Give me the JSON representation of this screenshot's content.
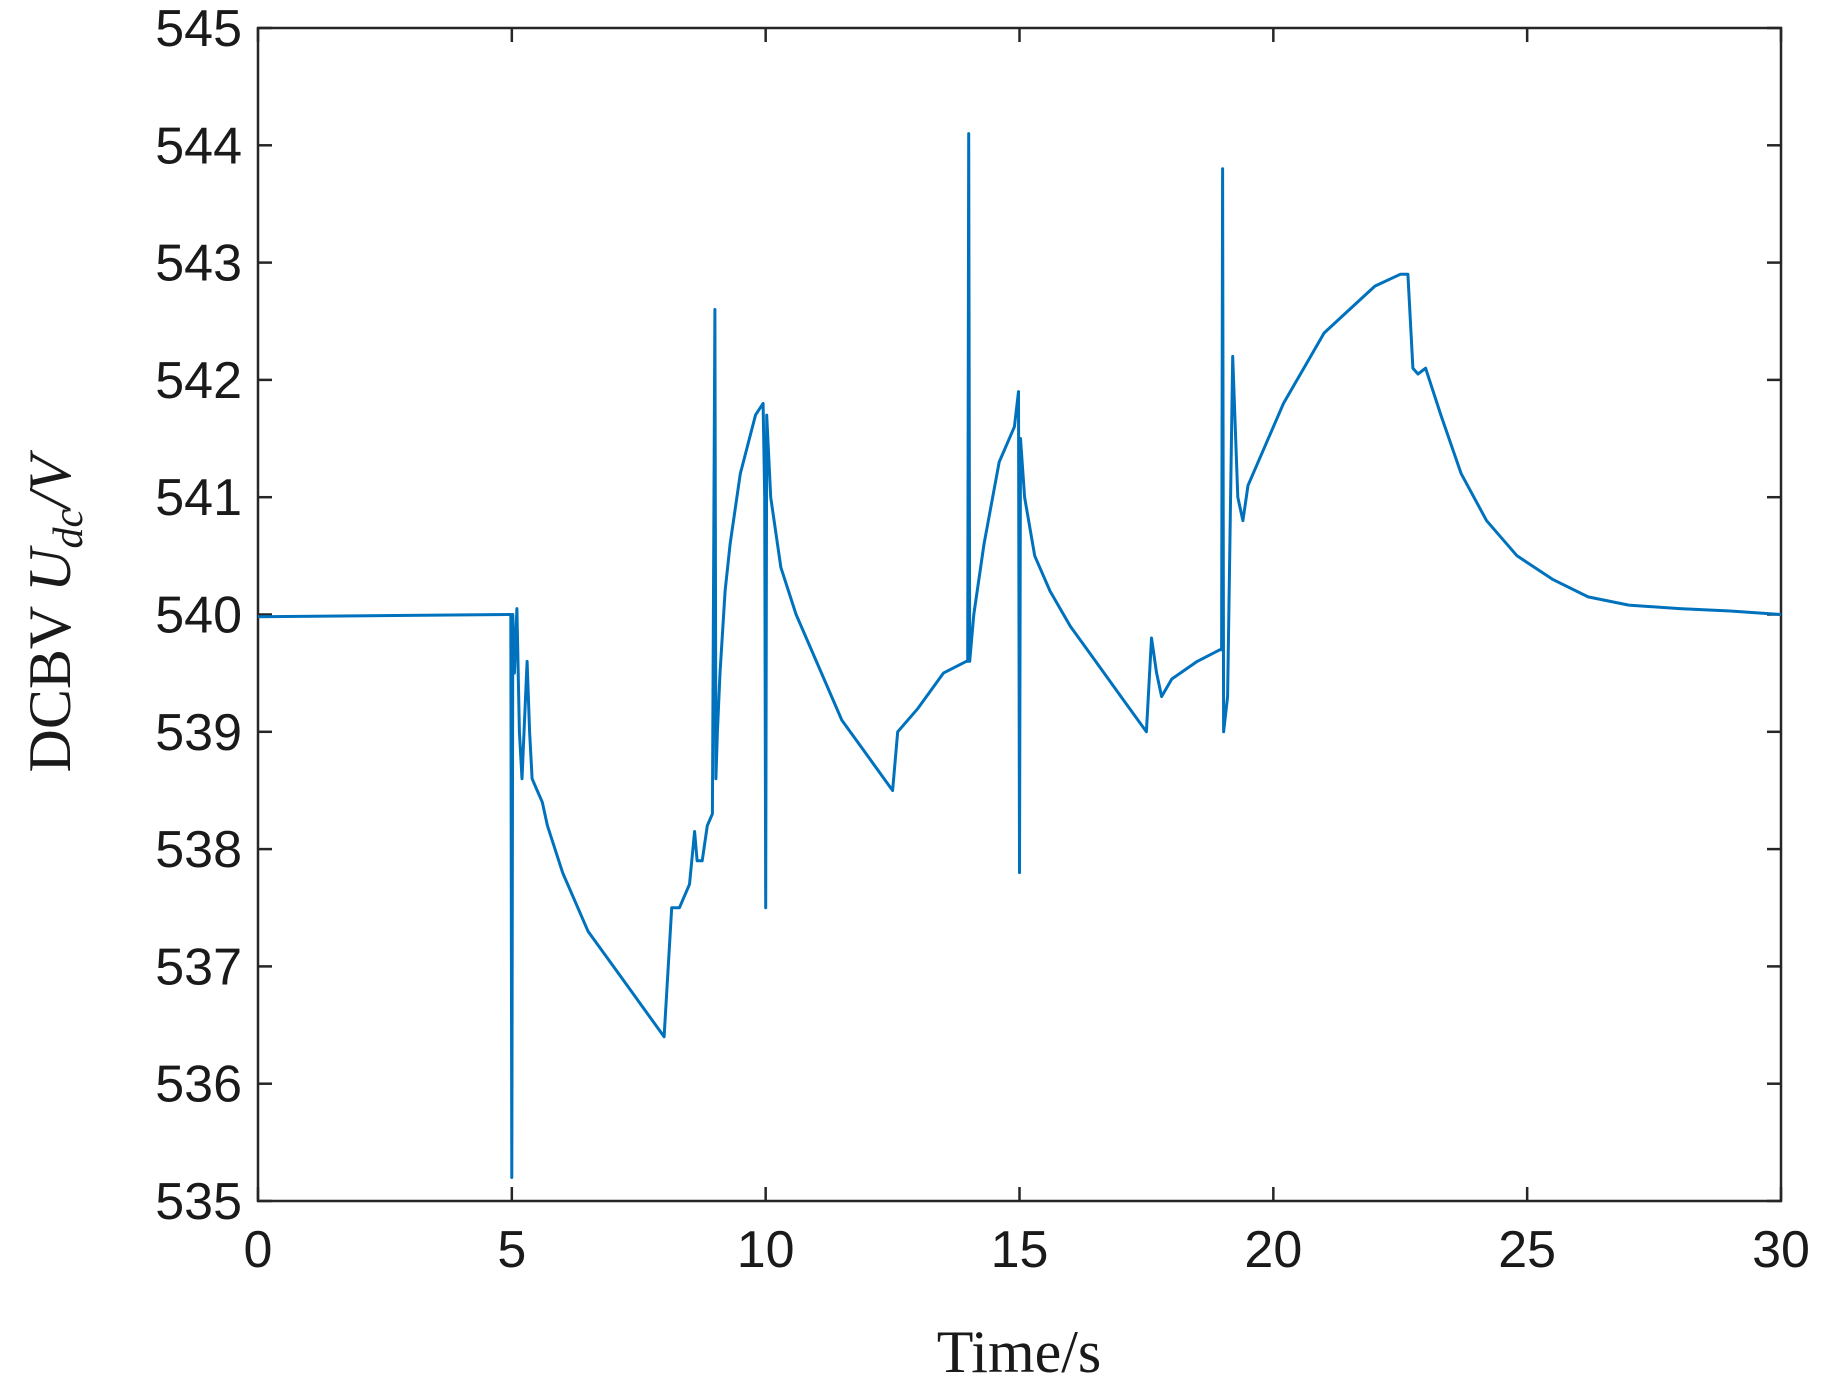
{
  "chart_data": {
    "type": "line",
    "xlabel": "Time/s",
    "ylabel_plain": "DCBV ",
    "ylabel_var": "U",
    "ylabel_sub": "dc",
    "ylabel_unit": "/V",
    "xlim": [
      0,
      30
    ],
    "ylim": [
      535,
      545
    ],
    "xticks": [
      0,
      5,
      10,
      15,
      20,
      25,
      30
    ],
    "yticks": [
      535,
      536,
      537,
      538,
      539,
      540,
      541,
      542,
      543,
      544,
      545
    ],
    "grid": false,
    "line_color": "#0072BD",
    "series": [
      {
        "x": [
          0,
          4.98,
          5.0,
          5.02,
          5.05,
          5.1,
          5.15,
          5.2,
          5.3,
          5.35,
          5.4,
          5.5,
          5.6,
          5.7,
          6.0,
          6.5,
          7.0,
          7.5,
          8.0,
          8.15,
          8.2,
          8.3,
          8.5,
          8.6,
          8.65,
          8.75,
          8.85,
          8.95,
          9.0,
          9.02,
          9.05,
          9.1,
          9.2,
          9.3,
          9.5,
          9.8,
          9.95,
          9.98,
          10.0,
          10.02,
          10.1,
          10.3,
          10.6,
          11.0,
          11.5,
          12.0,
          12.5,
          12.6,
          13.0,
          13.5,
          13.95,
          13.98,
          14.0,
          14.02,
          14.1,
          14.3,
          14.6,
          14.9,
          14.98,
          15.0,
          15.02,
          15.1,
          15.3,
          15.6,
          16.0,
          16.5,
          17.0,
          17.5,
          17.6,
          17.7,
          17.8,
          18.0,
          18.5,
          18.95,
          18.98,
          19.0,
          19.02,
          19.1,
          19.2,
          19.3,
          19.4,
          19.5,
          19.8,
          20.2,
          20.6,
          21.0,
          21.5,
          22.0,
          22.5,
          22.65,
          22.75,
          22.85,
          23.0,
          23.3,
          23.7,
          24.2,
          24.8,
          25.5,
          26.2,
          27.0,
          28.0,
          29.0,
          30.0
        ],
        "y": [
          539.98,
          540.0,
          535.2,
          540.0,
          539.5,
          540.05,
          539.0,
          538.6,
          539.6,
          539.0,
          538.6,
          538.5,
          538.4,
          538.2,
          537.8,
          537.3,
          537.0,
          536.7,
          536.4,
          537.5,
          537.5,
          537.5,
          537.7,
          538.15,
          537.9,
          537.9,
          538.2,
          538.3,
          542.6,
          538.6,
          539.0,
          539.5,
          540.2,
          540.6,
          541.2,
          541.7,
          541.8,
          541.0,
          537.5,
          541.7,
          541.0,
          540.4,
          540.0,
          539.6,
          539.1,
          538.8,
          538.5,
          539.0,
          539.2,
          539.5,
          539.6,
          539.6,
          544.1,
          539.6,
          540.0,
          540.6,
          541.3,
          541.6,
          541.9,
          537.8,
          541.5,
          541.0,
          540.5,
          540.2,
          539.9,
          539.6,
          539.3,
          539.0,
          539.8,
          539.5,
          539.3,
          539.45,
          539.6,
          539.7,
          539.7,
          543.8,
          539.0,
          539.3,
          542.2,
          541.0,
          540.8,
          541.1,
          541.4,
          541.8,
          542.1,
          542.4,
          542.6,
          542.8,
          542.9,
          542.9,
          542.1,
          542.05,
          542.1,
          541.7,
          541.2,
          540.8,
          540.5,
          540.3,
          540.15,
          540.08,
          540.05,
          540.03,
          540.0
        ]
      }
    ]
  }
}
